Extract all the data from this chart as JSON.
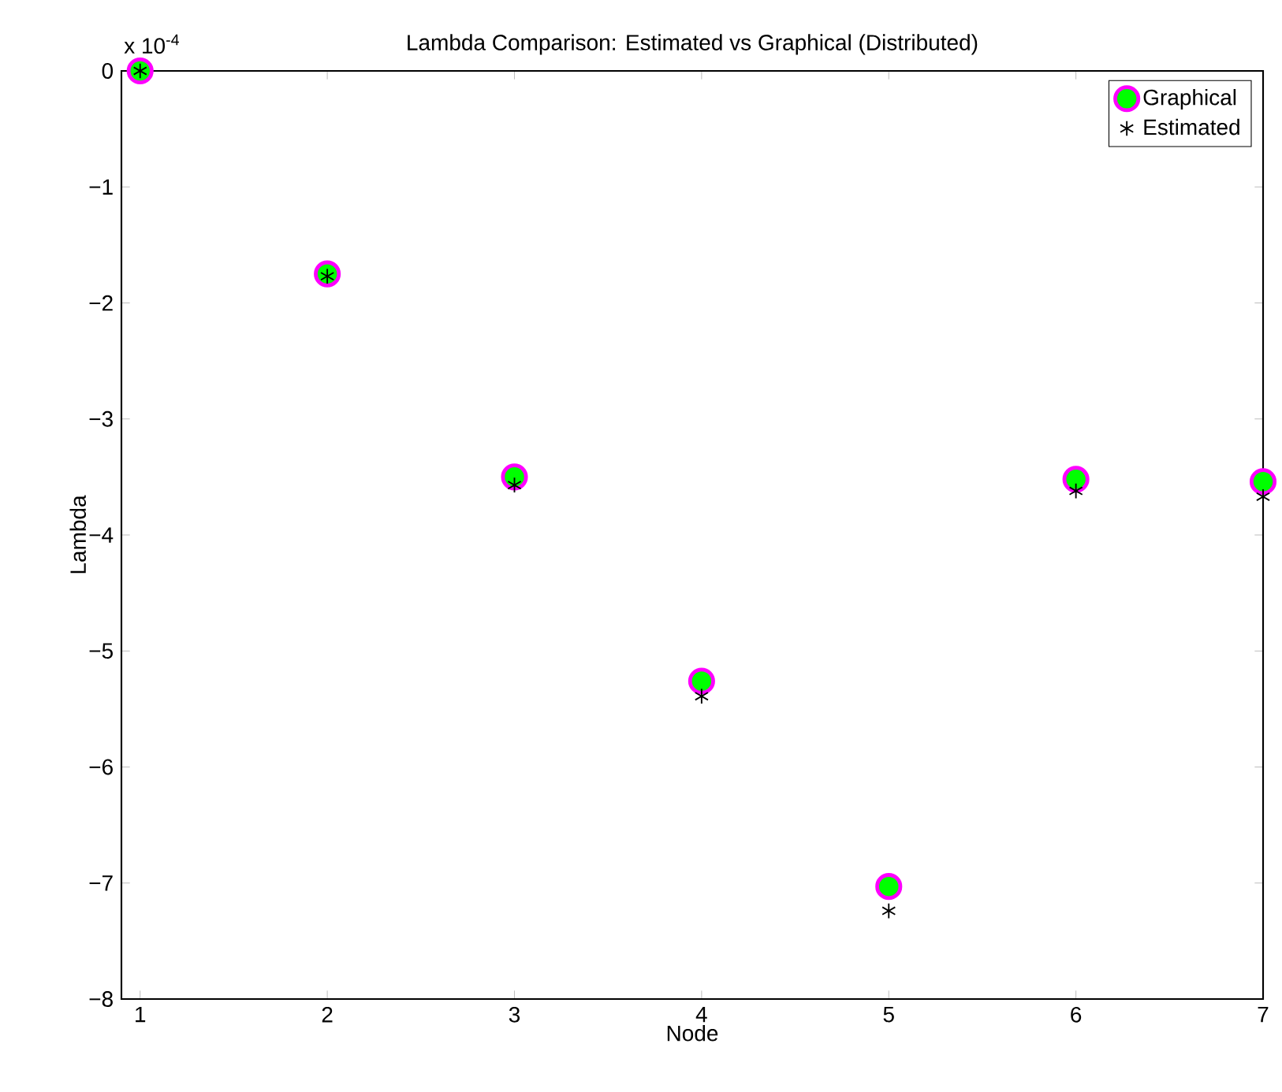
{
  "chart_data": {
    "type": "scatter",
    "title": "Lambda Comparison: Estimated vs Graphical (Distributed)",
    "xlabel": "Node",
    "ylabel": "Lambda",
    "x": [
      1,
      2,
      3,
      4,
      5,
      6,
      7
    ],
    "series": [
      {
        "name": "Graphical",
        "color": "#00ff00",
        "marker": "circle",
        "values": [
          0,
          -1.75,
          -3.5,
          -5.26,
          -7.03,
          -3.52,
          -3.54
        ]
      },
      {
        "name": "Estimated",
        "color": "#000000",
        "marker": "cross",
        "values": [
          0,
          -1.77,
          -3.57,
          -5.39,
          -7.24,
          -3.62,
          -3.67
        ]
      }
    ],
    "xlim": [
      0.9,
      7
    ],
    "ylim": [
      -8,
      0
    ],
    "xticks": [
      1,
      2,
      3,
      4,
      5,
      6,
      7
    ],
    "yticks": [
      {
        "value": -8,
        "label": "−8"
      },
      {
        "value": -7,
        "label": "−7"
      },
      {
        "value": -6,
        "label": "−6"
      },
      {
        "value": -5,
        "label": "−5"
      },
      {
        "value": -4,
        "label": "−4"
      },
      {
        "value": -3,
        "label": "−3"
      },
      {
        "value": -2,
        "label": "−2"
      },
      {
        "value": -1,
        "label": "−1"
      },
      0
    ],
    "annotations": [
      "x 10$^{-4}$"
    ],
    "legend": "top right",
    "grid": false
  }
}
